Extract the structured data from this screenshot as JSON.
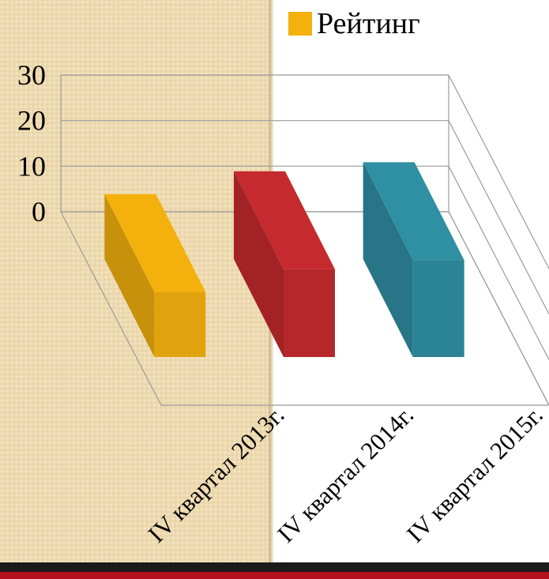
{
  "chart_data": {
    "type": "bar",
    "categories": [
      "IV квартал 2013г.",
      "IV квартал 2014г.",
      "IV квартал 2015г."
    ],
    "series": [
      {
        "name": "Рейтинг",
        "values": [
          3,
          8,
          10
        ]
      }
    ],
    "bar_colors": [
      "#f4b10e",
      "#c52a2e",
      "#2f8fa3"
    ],
    "legend": {
      "position": "top-right",
      "entries": [
        "Рейтинг"
      ]
    },
    "yticks": [
      "0",
      "10",
      "20",
      "30"
    ],
    "ylim": [
      0,
      30
    ],
    "grid": true,
    "three_d": true
  },
  "colors": {
    "legend_swatch": "#f4b10e",
    "left_panel": "#eedab0",
    "bottom_stripe": "#b3111d"
  }
}
